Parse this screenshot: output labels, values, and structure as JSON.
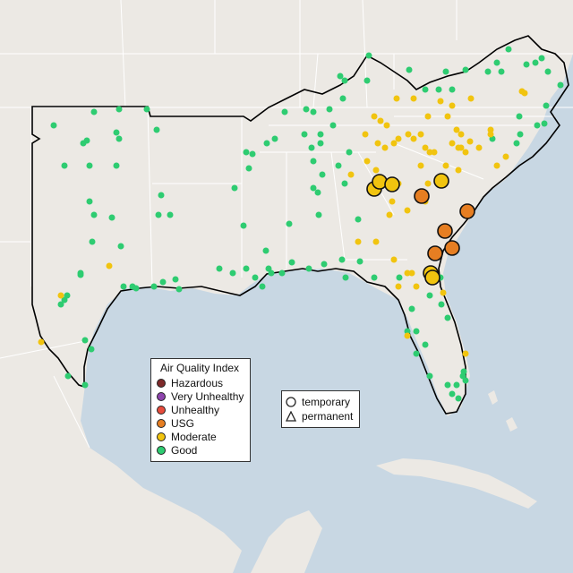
{
  "legend": {
    "title": "Air Quality Index",
    "categories": [
      {
        "label": "Hazardous",
        "color": "#7e2a2a"
      },
      {
        "label": "Very Unhealthy",
        "color": "#8e44ad"
      },
      {
        "label": "Unhealthy",
        "color": "#e74c3c"
      },
      {
        "label": "USG",
        "color": "#e67e22"
      },
      {
        "label": "Moderate",
        "color": "#f1c40f"
      },
      {
        "label": "Good",
        "color": "#2ecc71"
      }
    ]
  },
  "monitor_types": {
    "temporary": "temporary",
    "permanent": "permanent"
  },
  "colors": {
    "ocean": "#c8d7e3",
    "land": "#ece9e4",
    "region_outline": "#000000",
    "state_border": "#ffffff"
  }
}
